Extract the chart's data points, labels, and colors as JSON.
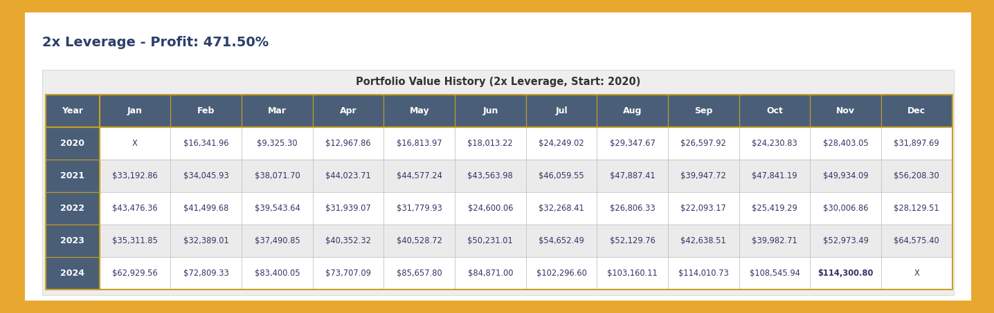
{
  "title": "2x Leverage - Profit: 471.50%",
  "table_title": "Portfolio Value History (2x Leverage, Start: 2020)",
  "columns": [
    "Year",
    "Jan",
    "Feb",
    "Mar",
    "Apr",
    "May",
    "Jun",
    "Jul",
    "Aug",
    "Sep",
    "Oct",
    "Nov",
    "Dec"
  ],
  "rows": [
    [
      "2020",
      "X",
      "$16,341.96",
      "$9,325.30",
      "$12,967.86",
      "$16,813.97",
      "$18,013.22",
      "$24,249.02",
      "$29,347.67",
      "$26,597.92",
      "$24,230.83",
      "$28,403.05",
      "$31,897.69"
    ],
    [
      "2021",
      "$33,192.86",
      "$34,045.93",
      "$38,071.70",
      "$44,023.71",
      "$44,577.24",
      "$43,563.98",
      "$46,059.55",
      "$47,887.41",
      "$39,947.72",
      "$47,841.19",
      "$49,934.09",
      "$56,208.30"
    ],
    [
      "2022",
      "$43,476.36",
      "$41,499.68",
      "$39,543.64",
      "$31,939.07",
      "$31,779.93",
      "$24,600.06",
      "$32,268.41",
      "$26,806.33",
      "$22,093.17",
      "$25,419.29",
      "$30,006.86",
      "$28,129.51"
    ],
    [
      "2023",
      "$35,311.85",
      "$32,389.01",
      "$37,490.85",
      "$40,352.32",
      "$40,528.72",
      "$50,231.01",
      "$54,652.49",
      "$52,129.76",
      "$42,638.51",
      "$39,982.71",
      "$52,973.49",
      "$64,575.40"
    ],
    [
      "2024",
      "$62,929.56",
      "$72,809.33",
      "$83,400.05",
      "$73,707.09",
      "$85,657.80",
      "$84,871.00",
      "$102,296.60",
      "$103,160.11",
      "$114,010.73",
      "$108,545.94",
      "$114,300.80",
      "X"
    ]
  ],
  "bold_cell_row": 4,
  "bold_cell_col": 11,
  "header_bg": "#4a5e78",
  "header_fg": "#ffffff",
  "year_bg": "#4a5e78",
  "year_fg": "#ffffff",
  "row_bg_light": "#ffffff",
  "row_bg_mid": "#ebebeb",
  "outer_bg": "#e8a830",
  "table_area_bg": "#eeeeee",
  "table_title_color": "#333333",
  "title_color": "#2c3e6b",
  "gold_border": "#c8a020",
  "cell_text_color": "#333366",
  "cell_border_color": "#c0c0c0",
  "header_border_color": "#c8a020"
}
